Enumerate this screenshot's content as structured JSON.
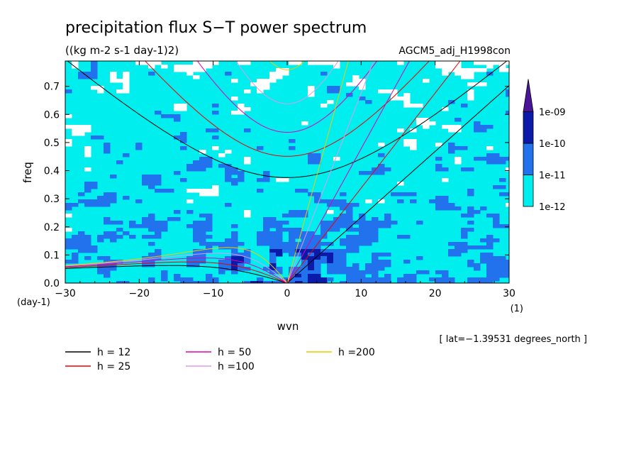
{
  "chart_data": {
    "type": "heatmap",
    "title": "precipitation flux S−T power spectrum",
    "subtitle": "((kg m-2 s-1 day-1)2)",
    "run_label": "AGCM5_adj_H1998con",
    "xlabel": "wvn",
    "ylabel": "freq",
    "x_unit": "(1)",
    "y_unit": "(day-1)",
    "xlim": [
      -30,
      30
    ],
    "ylim": [
      0,
      0.79
    ],
    "x_ticks": [
      -30,
      -20,
      -10,
      0,
      10,
      20,
      30
    ],
    "x_tick_labels": [
      "−30",
      "−20",
      "−10",
      "0",
      "10",
      "20",
      "30"
    ],
    "y_ticks": [
      0,
      0.1,
      0.2,
      0.3,
      0.4,
      0.5,
      0.6,
      0.7
    ],
    "y_tick_labels": [
      "0.0",
      "0.1",
      "0.2",
      "0.3",
      "0.4",
      "0.5",
      "0.6",
      "0.7"
    ],
    "location_note": "[ lat=−1.39531 degrees_north ]",
    "colorbar": {
      "levels": [
        "1e-12",
        "1e-11",
        "1e-10",
        "1e-09"
      ],
      "colors": [
        "#ffffff",
        "#00eeee",
        "#2272ee",
        "#0b1aa8",
        "#4b1499"
      ],
      "extend": "max"
    },
    "dispersion_curves": [
      {
        "label": "h = 12",
        "h": 12,
        "color": "#000000"
      },
      {
        "label": "h = 25",
        "h": 25,
        "color": "#ee0000"
      },
      {
        "label": "h = 50",
        "h": 50,
        "color": "#dd00bb"
      },
      {
        "label": "h =100",
        "h": 100,
        "color": "#dd99ee"
      },
      {
        "label": "h =200",
        "h": 200,
        "color": "#eecc00"
      }
    ],
    "grid": false,
    "legend_position": "bottom"
  }
}
